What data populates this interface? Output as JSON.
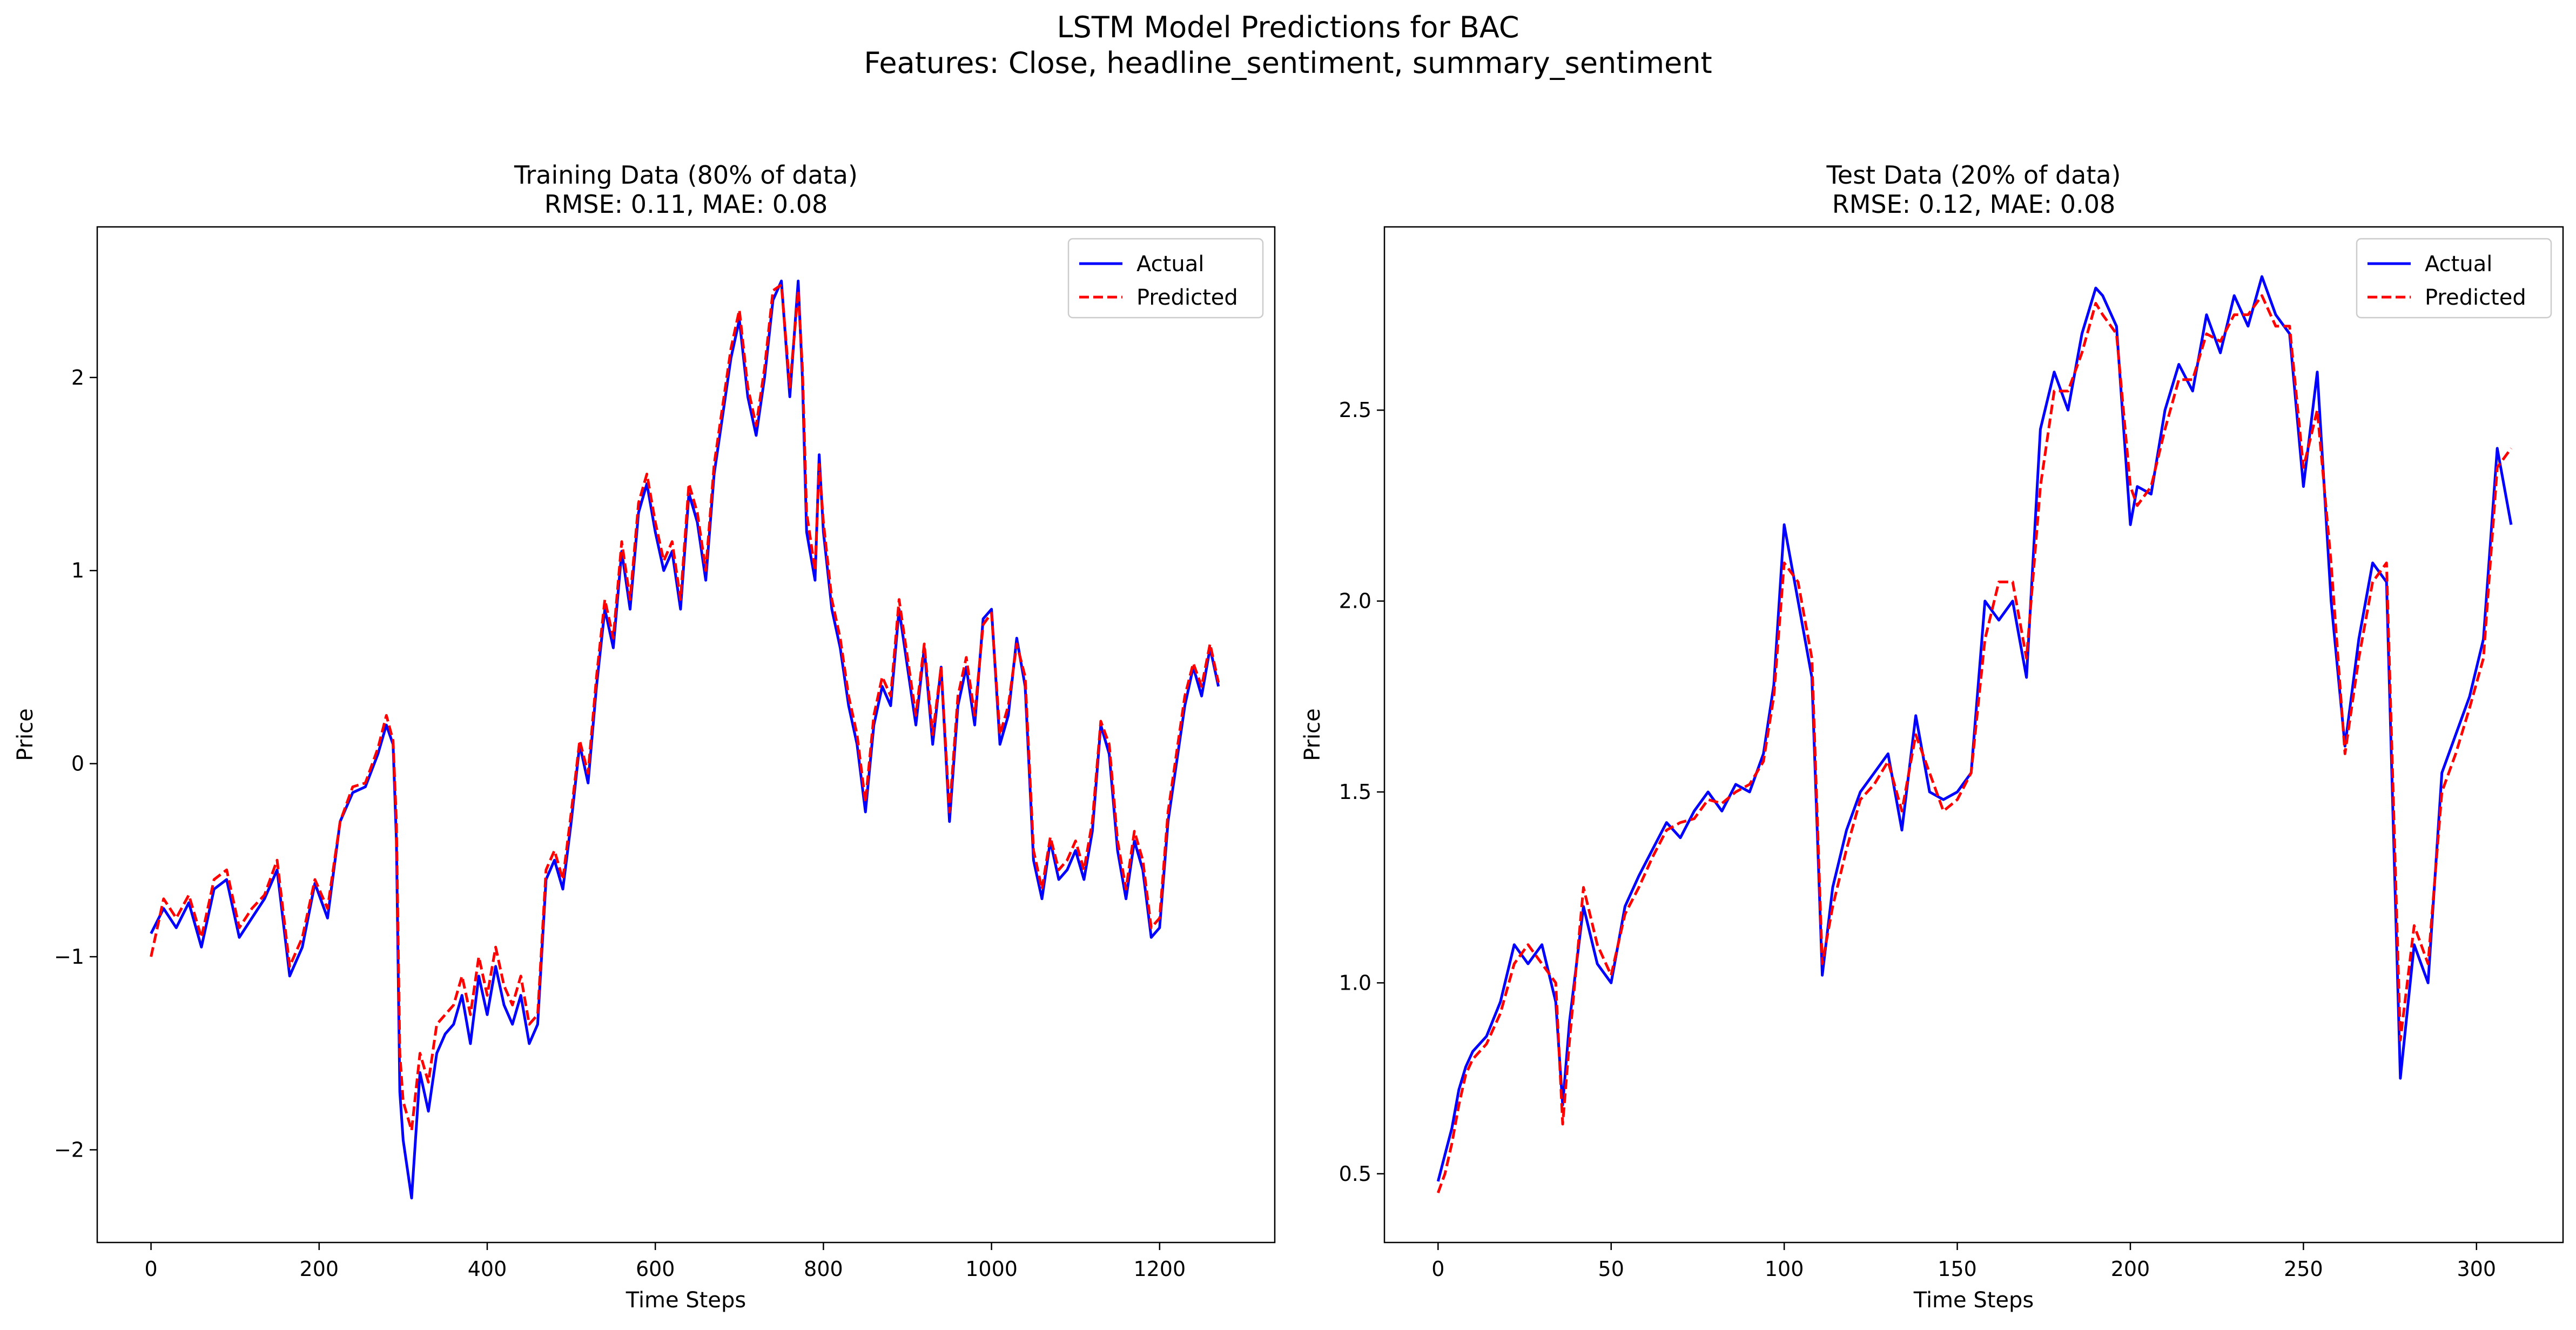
{
  "suptitle": {
    "line1": "LSTM Model Predictions for BAC",
    "line2": "Features: Close, headline_sentiment, summary_sentiment"
  },
  "colors": {
    "actual": "#0000ff",
    "predicted": "#ff0000",
    "axes": "#000000",
    "background": "#ffffff"
  },
  "chart_data": [
    {
      "type": "line",
      "title": "Training Data (80% of data)",
      "subtitle": "RMSE: 0.11, MAE: 0.08",
      "xlabel": "Time Steps",
      "ylabel": "Price",
      "xlim": [
        -64,
        1337
      ],
      "ylim": [
        -2.48,
        2.78
      ],
      "xticks": [
        0,
        200,
        400,
        600,
        800,
        1000,
        1200
      ],
      "yticks": [
        -2,
        -1,
        0,
        1,
        2
      ],
      "legend": {
        "placement": "upper right",
        "entries": [
          "Actual",
          "Predicted"
        ]
      },
      "grid": false,
      "x": [
        0,
        15,
        30,
        45,
        60,
        75,
        90,
        105,
        120,
        135,
        150,
        165,
        180,
        195,
        210,
        225,
        240,
        255,
        270,
        280,
        288,
        292,
        296,
        300,
        310,
        320,
        330,
        340,
        350,
        360,
        370,
        380,
        390,
        400,
        410,
        420,
        430,
        440,
        450,
        460,
        470,
        480,
        490,
        500,
        510,
        520,
        530,
        540,
        550,
        560,
        570,
        580,
        590,
        600,
        610,
        620,
        630,
        640,
        650,
        660,
        670,
        680,
        690,
        700,
        710,
        720,
        730,
        740,
        750,
        760,
        770,
        775,
        780,
        790,
        795,
        800,
        810,
        820,
        830,
        840,
        850,
        860,
        870,
        880,
        890,
        900,
        910,
        920,
        930,
        940,
        950,
        960,
        970,
        980,
        990,
        1000,
        1010,
        1020,
        1030,
        1040,
        1050,
        1060,
        1070,
        1080,
        1090,
        1100,
        1110,
        1120,
        1130,
        1140,
        1150,
        1160,
        1170,
        1180,
        1190,
        1200,
        1210,
        1220,
        1230,
        1240,
        1250,
        1260,
        1270
      ],
      "series": [
        {
          "name": "Actual",
          "style": "solid",
          "values": [
            -0.88,
            -0.75,
            -0.85,
            -0.72,
            -0.95,
            -0.65,
            -0.6,
            -0.9,
            -0.8,
            -0.7,
            -0.55,
            -1.1,
            -0.95,
            -0.62,
            -0.8,
            -0.3,
            -0.15,
            -0.12,
            0.05,
            0.2,
            0.1,
            -0.4,
            -1.7,
            -1.95,
            -2.25,
            -1.6,
            -1.8,
            -1.5,
            -1.4,
            -1.35,
            -1.2,
            -1.45,
            -1.1,
            -1.3,
            -1.05,
            -1.25,
            -1.35,
            -1.2,
            -1.45,
            -1.35,
            -0.6,
            -0.5,
            -0.65,
            -0.3,
            0.1,
            -0.1,
            0.4,
            0.8,
            0.6,
            1.1,
            0.8,
            1.3,
            1.45,
            1.2,
            1.0,
            1.1,
            0.8,
            1.4,
            1.25,
            0.95,
            1.5,
            1.8,
            2.1,
            2.3,
            1.9,
            1.7,
            2.0,
            2.4,
            2.5,
            1.9,
            2.5,
            2.0,
            1.2,
            0.95,
            1.6,
            1.2,
            0.8,
            0.6,
            0.3,
            0.1,
            -0.25,
            0.2,
            0.4,
            0.3,
            0.8,
            0.5,
            0.2,
            0.6,
            0.1,
            0.5,
            -0.3,
            0.3,
            0.5,
            0.2,
            0.75,
            0.8,
            0.1,
            0.25,
            0.65,
            0.4,
            -0.5,
            -0.7,
            -0.4,
            -0.6,
            -0.55,
            -0.45,
            -0.6,
            -0.35,
            0.2,
            0.05,
            -0.45,
            -0.7,
            -0.4,
            -0.55,
            -0.9,
            -0.85,
            -0.3,
            0.0,
            0.3,
            0.5,
            0.35,
            0.6,
            0.4
          ]
        },
        {
          "name": "Predicted",
          "style": "dashed",
          "values": [
            -1.0,
            -0.7,
            -0.8,
            -0.68,
            -0.9,
            -0.6,
            -0.55,
            -0.85,
            -0.75,
            -0.68,
            -0.5,
            -1.05,
            -0.9,
            -0.6,
            -0.75,
            -0.3,
            -0.12,
            -0.1,
            0.08,
            0.25,
            0.12,
            -0.3,
            -1.5,
            -1.75,
            -1.9,
            -1.5,
            -1.65,
            -1.35,
            -1.3,
            -1.25,
            -1.1,
            -1.3,
            -1.0,
            -1.2,
            -0.95,
            -1.15,
            -1.25,
            -1.1,
            -1.35,
            -1.3,
            -0.55,
            -0.45,
            -0.6,
            -0.25,
            0.12,
            -0.05,
            0.45,
            0.85,
            0.65,
            1.15,
            0.85,
            1.35,
            1.5,
            1.25,
            1.05,
            1.15,
            0.85,
            1.45,
            1.3,
            1.0,
            1.55,
            1.85,
            2.15,
            2.35,
            1.95,
            1.75,
            2.05,
            2.45,
            2.48,
            1.95,
            2.45,
            2.05,
            1.3,
            1.0,
            1.55,
            1.25,
            0.85,
            0.65,
            0.35,
            0.15,
            -0.2,
            0.25,
            0.45,
            0.35,
            0.85,
            0.55,
            0.25,
            0.62,
            0.15,
            0.5,
            -0.25,
            0.35,
            0.55,
            0.25,
            0.72,
            0.78,
            0.15,
            0.3,
            0.62,
            0.45,
            -0.45,
            -0.65,
            -0.38,
            -0.55,
            -0.5,
            -0.4,
            -0.55,
            -0.3,
            0.22,
            0.1,
            -0.4,
            -0.65,
            -0.35,
            -0.5,
            -0.85,
            -0.8,
            -0.25,
            0.05,
            0.35,
            0.52,
            0.4,
            0.62,
            0.42
          ]
        }
      ]
    },
    {
      "type": "line",
      "title": "Test Data (20% of data)",
      "subtitle": "RMSE: 0.12, MAE: 0.08",
      "xlabel": "Time Steps",
      "ylabel": "Price",
      "xlim": [
        -15.5,
        325
      ],
      "ylim": [
        0.32,
        2.98
      ],
      "xticks": [
        0,
        50,
        100,
        150,
        200,
        250,
        300
      ],
      "yticks": [
        0.5,
        1.0,
        1.5,
        2.0,
        2.5
      ],
      "legend": {
        "placement": "upper right",
        "entries": [
          "Actual",
          "Predicted"
        ]
      },
      "grid": false,
      "x": [
        0,
        2,
        4,
        6,
        8,
        10,
        14,
        18,
        22,
        26,
        30,
        34,
        36,
        38,
        42,
        46,
        50,
        54,
        58,
        62,
        66,
        70,
        74,
        78,
        82,
        86,
        90,
        94,
        97,
        100,
        104,
        108,
        111,
        114,
        118,
        122,
        126,
        130,
        134,
        138,
        142,
        146,
        150,
        154,
        158,
        162,
        166,
        170,
        174,
        178,
        182,
        186,
        190,
        192,
        196,
        200,
        202,
        206,
        210,
        214,
        218,
        222,
        226,
        230,
        234,
        238,
        242,
        246,
        250,
        254,
        258,
        262,
        266,
        270,
        274,
        278,
        282,
        286,
        290,
        294,
        298,
        302,
        306,
        310
      ],
      "series": [
        {
          "name": "Actual",
          "style": "solid",
          "values": [
            0.48,
            0.55,
            0.62,
            0.72,
            0.78,
            0.82,
            0.86,
            0.95,
            1.1,
            1.05,
            1.1,
            0.95,
            0.68,
            0.9,
            1.2,
            1.05,
            1.0,
            1.2,
            1.28,
            1.35,
            1.42,
            1.38,
            1.45,
            1.5,
            1.45,
            1.52,
            1.5,
            1.6,
            1.78,
            2.2,
            2.0,
            1.8,
            1.02,
            1.25,
            1.4,
            1.5,
            1.55,
            1.6,
            1.4,
            1.7,
            1.5,
            1.48,
            1.5,
            1.55,
            2.0,
            1.95,
            2.0,
            1.8,
            2.45,
            2.6,
            2.5,
            2.7,
            2.82,
            2.8,
            2.72,
            2.2,
            2.3,
            2.28,
            2.5,
            2.62,
            2.55,
            2.75,
            2.65,
            2.8,
            2.72,
            2.85,
            2.75,
            2.7,
            2.3,
            2.6,
            2.0,
            1.62,
            1.9,
            2.1,
            2.05,
            0.75,
            1.1,
            1.0,
            1.55,
            1.65,
            1.75,
            1.9,
            2.4,
            2.2
          ]
        },
        {
          "name": "Predicted",
          "style": "dashed",
          "values": [
            0.45,
            0.5,
            0.58,
            0.68,
            0.76,
            0.8,
            0.84,
            0.92,
            1.05,
            1.1,
            1.05,
            1.0,
            0.63,
            0.85,
            1.25,
            1.1,
            1.02,
            1.18,
            1.25,
            1.33,
            1.4,
            1.42,
            1.43,
            1.48,
            1.47,
            1.5,
            1.52,
            1.58,
            1.75,
            2.1,
            2.05,
            1.85,
            1.05,
            1.2,
            1.35,
            1.48,
            1.52,
            1.58,
            1.45,
            1.65,
            1.55,
            1.45,
            1.48,
            1.55,
            1.9,
            2.05,
            2.05,
            1.85,
            2.3,
            2.55,
            2.55,
            2.65,
            2.78,
            2.75,
            2.7,
            2.3,
            2.25,
            2.3,
            2.45,
            2.58,
            2.58,
            2.7,
            2.68,
            2.75,
            2.75,
            2.8,
            2.72,
            2.72,
            2.35,
            2.5,
            2.1,
            1.6,
            1.85,
            2.05,
            2.1,
            0.85,
            1.15,
            1.05,
            1.5,
            1.6,
            1.72,
            1.85,
            2.35,
            2.4
          ]
        }
      ]
    }
  ]
}
